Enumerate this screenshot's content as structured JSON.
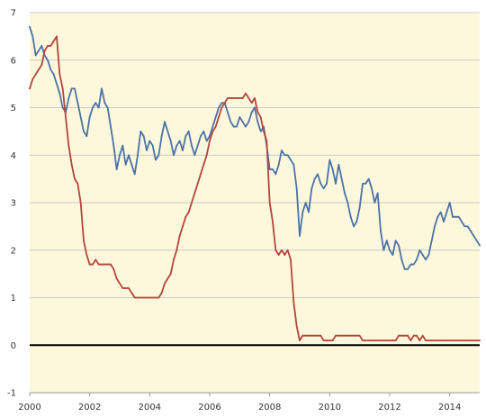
{
  "colors": {
    "plot_background": "#fdf8dc",
    "grid": "#c9c9c9",
    "zero_line": "#000000",
    "axis_line": "#999999"
  },
  "chart_data": {
    "type": "line",
    "xlim": [
      2000,
      2015
    ],
    "ylim": [
      -1,
      7
    ],
    "x_ticks": [
      2000,
      2002,
      2004,
      2006,
      2008,
      2010,
      2012,
      2014
    ],
    "x_tick_labels": [
      "2000",
      "2002",
      "2004",
      "2006",
      "2008",
      "2010",
      "2012",
      "2014"
    ],
    "y_ticks": [
      -1,
      0,
      1,
      2,
      3,
      4,
      5,
      6,
      7
    ],
    "y_tick_labels": [
      "-1",
      "0",
      "1",
      "2",
      "3",
      "4",
      "5",
      "6",
      "7"
    ],
    "grid": "horizontal",
    "legend": "none",
    "reference_line": {
      "y": 0,
      "color": "#000000"
    },
    "series": [
      {
        "color": "#4a72a8",
        "points": [
          [
            2000.0,
            6.7
          ],
          [
            2000.1,
            6.5
          ],
          [
            2000.2,
            6.1
          ],
          [
            2000.3,
            6.2
          ],
          [
            2000.4,
            6.3
          ],
          [
            2000.5,
            6.1
          ],
          [
            2000.6,
            6.0
          ],
          [
            2000.7,
            5.8
          ],
          [
            2000.8,
            5.7
          ],
          [
            2000.9,
            5.5
          ],
          [
            2001.0,
            5.3
          ],
          [
            2001.1,
            5.0
          ],
          [
            2001.2,
            4.9
          ],
          [
            2001.3,
            5.2
          ],
          [
            2001.4,
            5.4
          ],
          [
            2001.5,
            5.4
          ],
          [
            2001.6,
            5.1
          ],
          [
            2001.7,
            4.8
          ],
          [
            2001.8,
            4.5
          ],
          [
            2001.9,
            4.4
          ],
          [
            2002.0,
            4.8
          ],
          [
            2002.1,
            5.0
          ],
          [
            2002.2,
            5.1
          ],
          [
            2002.3,
            5.0
          ],
          [
            2002.4,
            5.4
          ],
          [
            2002.5,
            5.1
          ],
          [
            2002.6,
            5.0
          ],
          [
            2002.7,
            4.6
          ],
          [
            2002.8,
            4.2
          ],
          [
            2002.9,
            3.7
          ],
          [
            2003.0,
            4.0
          ],
          [
            2003.1,
            4.2
          ],
          [
            2003.2,
            3.8
          ],
          [
            2003.3,
            4.0
          ],
          [
            2003.4,
            3.8
          ],
          [
            2003.5,
            3.6
          ],
          [
            2003.6,
            4.0
          ],
          [
            2003.7,
            4.5
          ],
          [
            2003.8,
            4.4
          ],
          [
            2003.9,
            4.1
          ],
          [
            2004.0,
            4.3
          ],
          [
            2004.1,
            4.2
          ],
          [
            2004.2,
            3.9
          ],
          [
            2004.3,
            4.0
          ],
          [
            2004.4,
            4.4
          ],
          [
            2004.5,
            4.7
          ],
          [
            2004.6,
            4.5
          ],
          [
            2004.7,
            4.3
          ],
          [
            2004.8,
            4.0
          ],
          [
            2004.9,
            4.2
          ],
          [
            2005.0,
            4.3
          ],
          [
            2005.1,
            4.1
          ],
          [
            2005.2,
            4.4
          ],
          [
            2005.3,
            4.5
          ],
          [
            2005.4,
            4.2
          ],
          [
            2005.5,
            4.0
          ],
          [
            2005.6,
            4.2
          ],
          [
            2005.7,
            4.4
          ],
          [
            2005.8,
            4.5
          ],
          [
            2005.9,
            4.3
          ],
          [
            2006.0,
            4.4
          ],
          [
            2006.1,
            4.6
          ],
          [
            2006.2,
            4.8
          ],
          [
            2006.3,
            5.0
          ],
          [
            2006.4,
            5.1
          ],
          [
            2006.5,
            5.1
          ],
          [
            2006.6,
            4.9
          ],
          [
            2006.7,
            4.7
          ],
          [
            2006.8,
            4.6
          ],
          [
            2006.9,
            4.6
          ],
          [
            2007.0,
            4.8
          ],
          [
            2007.1,
            4.7
          ],
          [
            2007.2,
            4.6
          ],
          [
            2007.3,
            4.7
          ],
          [
            2007.4,
            4.9
          ],
          [
            2007.5,
            5.0
          ],
          [
            2007.6,
            4.7
          ],
          [
            2007.7,
            4.5
          ],
          [
            2007.8,
            4.6
          ],
          [
            2007.9,
            4.2
          ],
          [
            2008.0,
            3.7
          ],
          [
            2008.1,
            3.7
          ],
          [
            2008.2,
            3.6
          ],
          [
            2008.3,
            3.8
          ],
          [
            2008.4,
            4.1
          ],
          [
            2008.5,
            4.0
          ],
          [
            2008.6,
            4.0
          ],
          [
            2008.7,
            3.9
          ],
          [
            2008.8,
            3.8
          ],
          [
            2008.9,
            3.3
          ],
          [
            2009.0,
            2.3
          ],
          [
            2009.1,
            2.8
          ],
          [
            2009.2,
            3.0
          ],
          [
            2009.3,
            2.8
          ],
          [
            2009.4,
            3.3
          ],
          [
            2009.5,
            3.5
          ],
          [
            2009.6,
            3.6
          ],
          [
            2009.7,
            3.4
          ],
          [
            2009.8,
            3.3
          ],
          [
            2009.9,
            3.4
          ],
          [
            2010.0,
            3.9
          ],
          [
            2010.1,
            3.7
          ],
          [
            2010.2,
            3.4
          ],
          [
            2010.3,
            3.8
          ],
          [
            2010.4,
            3.5
          ],
          [
            2010.5,
            3.2
          ],
          [
            2010.6,
            3.0
          ],
          [
            2010.7,
            2.7
          ],
          [
            2010.8,
            2.5
          ],
          [
            2010.9,
            2.6
          ],
          [
            2011.0,
            2.9
          ],
          [
            2011.1,
            3.4
          ],
          [
            2011.2,
            3.4
          ],
          [
            2011.3,
            3.5
          ],
          [
            2011.4,
            3.3
          ],
          [
            2011.5,
            3.0
          ],
          [
            2011.6,
            3.2
          ],
          [
            2011.7,
            2.4
          ],
          [
            2011.8,
            2.0
          ],
          [
            2011.9,
            2.2
          ],
          [
            2012.0,
            2.0
          ],
          [
            2012.1,
            1.9
          ],
          [
            2012.2,
            2.2
          ],
          [
            2012.3,
            2.1
          ],
          [
            2012.4,
            1.8
          ],
          [
            2012.5,
            1.6
          ],
          [
            2012.6,
            1.6
          ],
          [
            2012.7,
            1.7
          ],
          [
            2012.8,
            1.7
          ],
          [
            2012.9,
            1.8
          ],
          [
            2013.0,
            2.0
          ],
          [
            2013.1,
            1.9
          ],
          [
            2013.2,
            1.8
          ],
          [
            2013.3,
            1.9
          ],
          [
            2013.4,
            2.2
          ],
          [
            2013.5,
            2.5
          ],
          [
            2013.6,
            2.7
          ],
          [
            2013.7,
            2.8
          ],
          [
            2013.8,
            2.6
          ],
          [
            2013.9,
            2.8
          ],
          [
            2014.0,
            3.0
          ],
          [
            2014.1,
            2.7
          ],
          [
            2014.2,
            2.7
          ],
          [
            2014.3,
            2.7
          ],
          [
            2014.4,
            2.6
          ],
          [
            2014.5,
            2.5
          ],
          [
            2014.6,
            2.5
          ],
          [
            2014.7,
            2.4
          ],
          [
            2014.8,
            2.3
          ],
          [
            2014.9,
            2.2
          ],
          [
            2015.0,
            2.1
          ]
        ]
      },
      {
        "color": "#b5443a",
        "points": [
          [
            2000.0,
            5.4
          ],
          [
            2000.1,
            5.6
          ],
          [
            2000.2,
            5.7
          ],
          [
            2000.3,
            5.8
          ],
          [
            2000.4,
            5.9
          ],
          [
            2000.5,
            6.2
          ],
          [
            2000.6,
            6.3
          ],
          [
            2000.7,
            6.3
          ],
          [
            2000.8,
            6.4
          ],
          [
            2000.9,
            6.5
          ],
          [
            2001.0,
            5.7
          ],
          [
            2001.1,
            5.4
          ],
          [
            2001.2,
            4.8
          ],
          [
            2001.3,
            4.2
          ],
          [
            2001.4,
            3.8
          ],
          [
            2001.5,
            3.5
          ],
          [
            2001.6,
            3.4
          ],
          [
            2001.7,
            3.0
          ],
          [
            2001.8,
            2.2
          ],
          [
            2001.9,
            1.9
          ],
          [
            2002.0,
            1.7
          ],
          [
            2002.1,
            1.7
          ],
          [
            2002.2,
            1.8
          ],
          [
            2002.3,
            1.7
          ],
          [
            2002.4,
            1.7
          ],
          [
            2002.5,
            1.7
          ],
          [
            2002.6,
            1.7
          ],
          [
            2002.7,
            1.7
          ],
          [
            2002.8,
            1.6
          ],
          [
            2002.9,
            1.4
          ],
          [
            2003.0,
            1.3
          ],
          [
            2003.1,
            1.2
          ],
          [
            2003.2,
            1.2
          ],
          [
            2003.3,
            1.2
          ],
          [
            2003.4,
            1.1
          ],
          [
            2003.5,
            1.0
          ],
          [
            2003.6,
            1.0
          ],
          [
            2003.7,
            1.0
          ],
          [
            2003.8,
            1.0
          ],
          [
            2003.9,
            1.0
          ],
          [
            2004.0,
            1.0
          ],
          [
            2004.1,
            1.0
          ],
          [
            2004.2,
            1.0
          ],
          [
            2004.3,
            1.0
          ],
          [
            2004.4,
            1.1
          ],
          [
            2004.5,
            1.3
          ],
          [
            2004.6,
            1.4
          ],
          [
            2004.7,
            1.5
          ],
          [
            2004.8,
            1.8
          ],
          [
            2004.9,
            2.0
          ],
          [
            2005.0,
            2.3
          ],
          [
            2005.1,
            2.5
          ],
          [
            2005.2,
            2.7
          ],
          [
            2005.3,
            2.8
          ],
          [
            2005.4,
            3.0
          ],
          [
            2005.5,
            3.2
          ],
          [
            2005.6,
            3.4
          ],
          [
            2005.7,
            3.6
          ],
          [
            2005.8,
            3.8
          ],
          [
            2005.9,
            4.0
          ],
          [
            2006.0,
            4.3
          ],
          [
            2006.1,
            4.5
          ],
          [
            2006.2,
            4.6
          ],
          [
            2006.3,
            4.8
          ],
          [
            2006.4,
            5.0
          ],
          [
            2006.5,
            5.1
          ],
          [
            2006.6,
            5.2
          ],
          [
            2006.7,
            5.2
          ],
          [
            2006.8,
            5.2
          ],
          [
            2006.9,
            5.2
          ],
          [
            2007.0,
            5.2
          ],
          [
            2007.1,
            5.2
          ],
          [
            2007.2,
            5.3
          ],
          [
            2007.3,
            5.2
          ],
          [
            2007.4,
            5.1
          ],
          [
            2007.5,
            5.2
          ],
          [
            2007.6,
            4.9
          ],
          [
            2007.7,
            4.8
          ],
          [
            2007.8,
            4.5
          ],
          [
            2007.9,
            4.3
          ],
          [
            2008.0,
            3.0
          ],
          [
            2008.1,
            2.6
          ],
          [
            2008.2,
            2.0
          ],
          [
            2008.3,
            1.9
          ],
          [
            2008.4,
            2.0
          ],
          [
            2008.5,
            1.9
          ],
          [
            2008.6,
            2.0
          ],
          [
            2008.7,
            1.8
          ],
          [
            2008.8,
            0.9
          ],
          [
            2008.9,
            0.4
          ],
          [
            2009.0,
            0.1
          ],
          [
            2009.1,
            0.2
          ],
          [
            2009.2,
            0.2
          ],
          [
            2009.3,
            0.2
          ],
          [
            2009.4,
            0.2
          ],
          [
            2009.5,
            0.2
          ],
          [
            2009.6,
            0.2
          ],
          [
            2009.7,
            0.2
          ],
          [
            2009.8,
            0.1
          ],
          [
            2009.9,
            0.1
          ],
          [
            2010.0,
            0.1
          ],
          [
            2010.1,
            0.1
          ],
          [
            2010.2,
            0.2
          ],
          [
            2010.3,
            0.2
          ],
          [
            2010.4,
            0.2
          ],
          [
            2010.5,
            0.2
          ],
          [
            2010.6,
            0.2
          ],
          [
            2010.7,
            0.2
          ],
          [
            2010.8,
            0.2
          ],
          [
            2010.9,
            0.2
          ],
          [
            2011.0,
            0.2
          ],
          [
            2011.1,
            0.1
          ],
          [
            2011.2,
            0.1
          ],
          [
            2011.3,
            0.1
          ],
          [
            2011.4,
            0.1
          ],
          [
            2011.5,
            0.1
          ],
          [
            2011.6,
            0.1
          ],
          [
            2011.7,
            0.1
          ],
          [
            2011.8,
            0.1
          ],
          [
            2011.9,
            0.1
          ],
          [
            2012.0,
            0.1
          ],
          [
            2012.1,
            0.1
          ],
          [
            2012.2,
            0.1
          ],
          [
            2012.3,
            0.2
          ],
          [
            2012.4,
            0.2
          ],
          [
            2012.5,
            0.2
          ],
          [
            2012.6,
            0.2
          ],
          [
            2012.7,
            0.1
          ],
          [
            2012.8,
            0.2
          ],
          [
            2012.9,
            0.2
          ],
          [
            2013.0,
            0.1
          ],
          [
            2013.1,
            0.2
          ],
          [
            2013.2,
            0.1
          ],
          [
            2013.3,
            0.1
          ],
          [
            2013.4,
            0.1
          ],
          [
            2013.5,
            0.1
          ],
          [
            2013.6,
            0.1
          ],
          [
            2013.7,
            0.1
          ],
          [
            2013.8,
            0.1
          ],
          [
            2013.9,
            0.1
          ],
          [
            2014.0,
            0.1
          ],
          [
            2014.1,
            0.1
          ],
          [
            2014.2,
            0.1
          ],
          [
            2014.3,
            0.1
          ],
          [
            2014.4,
            0.1
          ],
          [
            2014.5,
            0.1
          ],
          [
            2014.6,
            0.1
          ],
          [
            2014.7,
            0.1
          ],
          [
            2014.8,
            0.1
          ],
          [
            2014.9,
            0.1
          ],
          [
            2015.0,
            0.1
          ]
        ]
      }
    ]
  }
}
